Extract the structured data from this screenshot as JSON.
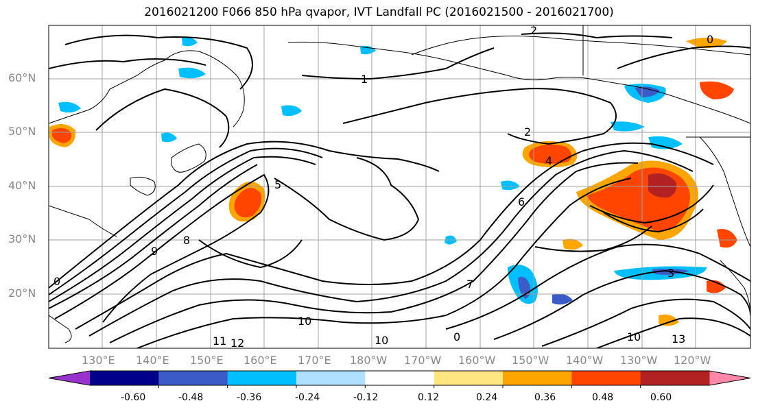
{
  "title": "2016021200 F066 850 hPa qvapor, IVT Landfall PC (2016021500 - 2016021700)",
  "lat_labels": [
    "60°N",
    "50°N",
    "40°N",
    "30°N",
    "20°N"
  ],
  "lon_labels": [
    "130°E",
    "140°E",
    "150°E",
    "160°E",
    "170°E",
    "180°W",
    "170°W",
    "160°W",
    "150°W",
    "140°W",
    "130°W",
    "120°W"
  ],
  "colorbar": {
    "colors": [
      "#9932cc",
      "#00008b",
      "#3a5bc8",
      "#00bfff",
      "#b0e0ff",
      "#ffffff",
      "#ffe680",
      "#ffa500",
      "#ff4500",
      "#b22222",
      "#ff88aa"
    ],
    "tick_labels": [
      "-0.60",
      "-0.48",
      "-0.36",
      "-0.24",
      "-0.12",
      "0.12",
      "0.24",
      "0.36",
      "0.48",
      "0.60"
    ]
  },
  "contour_labels": [
    "1",
    "2",
    "2",
    "3",
    "4",
    "5",
    "6",
    "7",
    "8",
    "9",
    "10",
    "10",
    "10",
    "11",
    "12",
    "13",
    "0",
    "0",
    "0"
  ]
}
